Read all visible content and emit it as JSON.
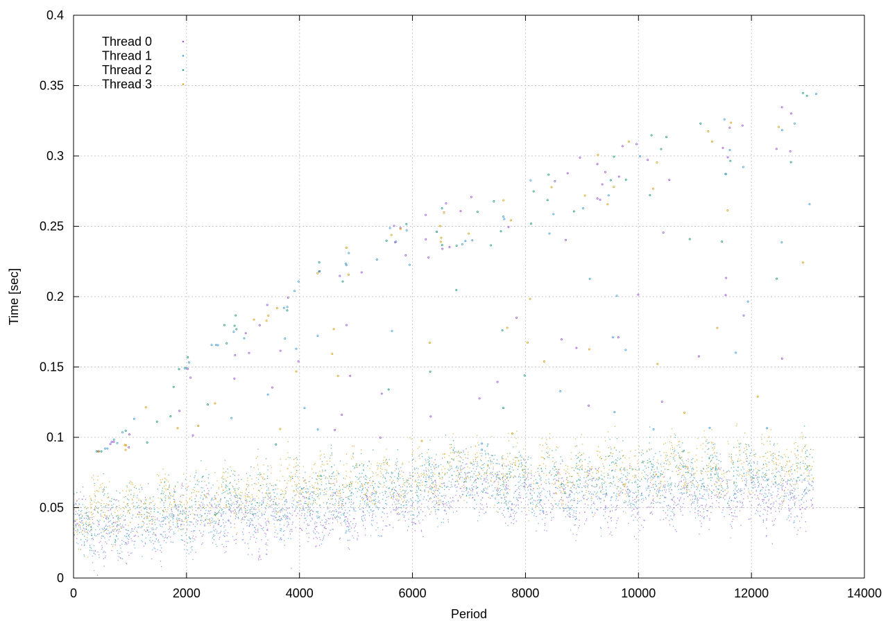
{
  "chart_data": {
    "type": "scatter",
    "title": "",
    "xlabel": "Period",
    "ylabel": "Time [sec]",
    "xlim": [
      0,
      14000
    ],
    "ylim": [
      0,
      0.4
    ],
    "xticks": [
      0,
      2000,
      4000,
      6000,
      8000,
      10000,
      12000,
      14000
    ],
    "xtick_labels": [
      "0",
      "2000",
      "4000",
      "6000",
      "8000",
      "10000",
      "12000",
      "14000"
    ],
    "yticks": [
      0,
      0.05,
      0.1,
      0.15,
      0.2,
      0.25,
      0.3,
      0.35,
      0.4
    ],
    "ytick_labels": [
      "0",
      "0.05",
      "0.1",
      "0.15",
      "0.2",
      "0.25",
      "0.3",
      "0.35",
      "0.4"
    ],
    "grid": true,
    "legend_position": "top-left",
    "series": [
      {
        "name": "Thread 0",
        "color": "#9b5fd6",
        "x": [
          0,
          500,
          1000,
          1500,
          2000,
          2500,
          3000,
          3500,
          4000,
          4500,
          5000,
          5500,
          6000,
          6500,
          7000,
          7500,
          8000,
          8500,
          9000,
          9500,
          10000,
          10500,
          11000,
          11500,
          12000,
          12500,
          13100
        ],
        "y": [
          0.04,
          0.03,
          0.034,
          0.038,
          0.04,
          0.041,
          0.043,
          0.04,
          0.043,
          0.043,
          0.046,
          0.048,
          0.052,
          0.056,
          0.068,
          0.062,
          0.058,
          0.057,
          0.055,
          0.055,
          0.057,
          0.058,
          0.06,
          0.058,
          0.06,
          0.055,
          0.055
        ]
      },
      {
        "name": "Thread 1",
        "color": "#4aa3d6",
        "x": [
          0,
          500,
          1000,
          1500,
          2000,
          2500,
          3000,
          3500,
          4000,
          4500,
          5000,
          5500,
          6000,
          6500,
          7000,
          7500,
          8000,
          8500,
          9000,
          9500,
          10000,
          10500,
          11000,
          11500,
          12000,
          12500,
          13100
        ],
        "y": [
          0.04,
          0.03,
          0.033,
          0.036,
          0.036,
          0.042,
          0.044,
          0.045,
          0.048,
          0.05,
          0.052,
          0.055,
          0.058,
          0.062,
          0.07,
          0.064,
          0.062,
          0.06,
          0.058,
          0.06,
          0.062,
          0.063,
          0.065,
          0.062,
          0.066,
          0.062,
          0.063
        ]
      },
      {
        "name": "Thread 2",
        "color": "#2a9c8a",
        "x": [
          0,
          500,
          1000,
          1500,
          2000,
          2500,
          3000,
          3500,
          4000,
          4500,
          5000,
          5500,
          6000,
          6500,
          7000,
          7500,
          8000,
          8500,
          9000,
          9500,
          10000,
          10500,
          11000,
          11500,
          12000,
          12500,
          13100
        ],
        "y": [
          0.042,
          0.045,
          0.047,
          0.05,
          0.052,
          0.055,
          0.058,
          0.06,
          0.064,
          0.065,
          0.067,
          0.068,
          0.07,
          0.072,
          0.078,
          0.074,
          0.072,
          0.072,
          0.072,
          0.073,
          0.074,
          0.075,
          0.076,
          0.074,
          0.078,
          0.074,
          0.075
        ]
      },
      {
        "name": "Thread 3",
        "color": "#d6a520",
        "x": [
          0,
          500,
          1000,
          1500,
          2000,
          2500,
          3000,
          3500,
          4000,
          4500,
          5000,
          5500,
          6000,
          6500,
          7000,
          7500,
          8000,
          8500,
          9000,
          9500,
          10000,
          10500,
          11000,
          11500,
          12000,
          12500,
          13100
        ],
        "y": [
          0.043,
          0.048,
          0.05,
          0.053,
          0.055,
          0.058,
          0.06,
          0.062,
          0.066,
          0.067,
          0.07,
          0.071,
          0.072,
          0.074,
          0.08,
          0.077,
          0.076,
          0.075,
          0.076,
          0.077,
          0.078,
          0.079,
          0.08,
          0.078,
          0.085,
          0.08,
          0.08
        ]
      }
    ],
    "outlier_band": {
      "x": [
        500,
        1000,
        1500,
        2000,
        2500,
        3000,
        3500,
        4000,
        4500,
        5000,
        5500,
        6000,
        6500,
        7000,
        7500,
        8000,
        8500,
        9000,
        9500,
        10000,
        10500,
        11000,
        11500,
        12000,
        12500,
        13000
      ],
      "y": [
        0.09,
        0.11,
        0.14,
        0.16,
        0.18,
        0.19,
        0.2,
        0.215,
        0.23,
        0.24,
        0.255,
        0.26,
        0.265,
        0.275,
        0.28,
        0.285,
        0.29,
        0.3,
        0.31,
        0.315,
        0.32,
        0.33,
        0.33,
        0.34,
        0.34,
        0.35
      ]
    }
  }
}
